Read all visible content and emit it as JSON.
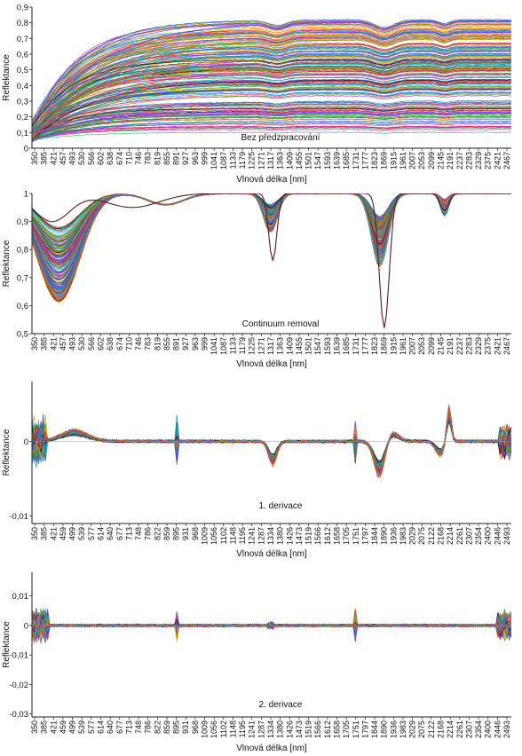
{
  "chart_data": [
    {
      "type": "line",
      "title": "Bez předzpracování",
      "ylabel": "Reflektance",
      "xlabel": "Vlnová délka [nm]",
      "xlim": [
        350,
        2500
      ],
      "ylim": [
        0,
        0.9
      ],
      "yticks": [
        "0",
        "0,1",
        "0,2",
        "0,3",
        "0,4",
        "0,5",
        "0,6",
        "0,7",
        "0,8",
        "0,9"
      ],
      "ytick_values": [
        0,
        0.1,
        0.2,
        0.3,
        0.4,
        0.5,
        0.6,
        0.7,
        0.8,
        0.9
      ],
      "xticks": [
        350,
        385,
        421,
        457,
        493,
        530,
        566,
        602,
        638,
        674,
        710,
        746,
        783,
        819,
        855,
        891,
        927,
        963,
        999,
        1041,
        1087,
        1133,
        1179,
        1225,
        1271,
        1317,
        1363,
        1409,
        1455,
        1501,
        1547,
        1593,
        1639,
        1685,
        1731,
        1777,
        1823,
        1869,
        1915,
        1961,
        2007,
        2053,
        2099,
        2145,
        2191,
        2237,
        2283,
        2329,
        2375,
        2421,
        2467
      ],
      "series_count": 180,
      "grid": false,
      "legend": "none"
    },
    {
      "type": "line",
      "title": "Continuum removal",
      "ylabel": "Reflektance",
      "xlabel": "Vlnová délka [nm]",
      "xlim": [
        350,
        2500
      ],
      "ylim": [
        0.5,
        1
      ],
      "yticks": [
        "0,5",
        "0,6",
        "0,7",
        "0,8",
        "0,9",
        "1"
      ],
      "ytick_values": [
        0.5,
        0.6,
        0.7,
        0.8,
        0.9,
        1.0
      ],
      "xticks": [
        350,
        385,
        421,
        457,
        493,
        530,
        566,
        602,
        638,
        674,
        710,
        746,
        783,
        819,
        855,
        891,
        927,
        963,
        999,
        1041,
        1087,
        1133,
        1179,
        1225,
        1271,
        1317,
        1363,
        1409,
        1455,
        1501,
        1547,
        1593,
        1639,
        1685,
        1731,
        1777,
        1823,
        1869,
        1915,
        1961,
        2007,
        2053,
        2099,
        2145,
        2191,
        2237,
        2283,
        2329,
        2375,
        2421,
        2467
      ],
      "series_count": 180,
      "grid": false,
      "legend": "none"
    },
    {
      "type": "line",
      "title": "1. derivace",
      "ylabel": "Reflektance",
      "xlabel": "Vlnová délka [nm]",
      "xlim": [
        350,
        2500
      ],
      "ylim": [
        -0.011,
        0.008
      ],
      "yticks": [
        "-0,01",
        "0"
      ],
      "ytick_values": [
        -0.01,
        0
      ],
      "xticks": [
        350,
        385,
        421,
        459,
        499,
        539,
        577,
        614,
        640,
        677,
        713,
        748,
        786,
        822,
        859,
        895,
        931,
        968,
        1009,
        1056,
        1102,
        1148,
        1195,
        1241,
        1287,
        1334,
        1380,
        1426,
        1473,
        1519,
        1566,
        1612,
        1658,
        1705,
        1751,
        1797,
        1844,
        1890,
        1936,
        1983,
        2029,
        2075,
        2122,
        2168,
        2214,
        2261,
        2307,
        2354,
        2400,
        2446,
        2493
      ],
      "series_count": 180,
      "grid": false,
      "legend": "none"
    },
    {
      "type": "line",
      "title": "2. derivace",
      "ylabel": "Reflektance",
      "xlabel": "Vlnová délka [nm]",
      "xlim": [
        350,
        2500
      ],
      "ylim": [
        -0.031,
        0.018
      ],
      "yticks": [
        "-0,03",
        "-0,02",
        "-0,01",
        "0",
        "0,01"
      ],
      "ytick_values": [
        -0.03,
        -0.02,
        -0.01,
        0,
        0.01
      ],
      "xticks": [
        350,
        385,
        421,
        459,
        499,
        539,
        577,
        614,
        640,
        677,
        713,
        748,
        786,
        822,
        859,
        895,
        931,
        968,
        1009,
        1056,
        1102,
        1148,
        1195,
        1241,
        1287,
        1334,
        1380,
        1426,
        1473,
        1519,
        1566,
        1612,
        1658,
        1705,
        1751,
        1797,
        1844,
        1890,
        1936,
        1983,
        2029,
        2075,
        2122,
        2168,
        2214,
        2261,
        2307,
        2354,
        2400,
        2446,
        2493
      ],
      "series_count": 180,
      "grid": false,
      "legend": "none"
    }
  ]
}
